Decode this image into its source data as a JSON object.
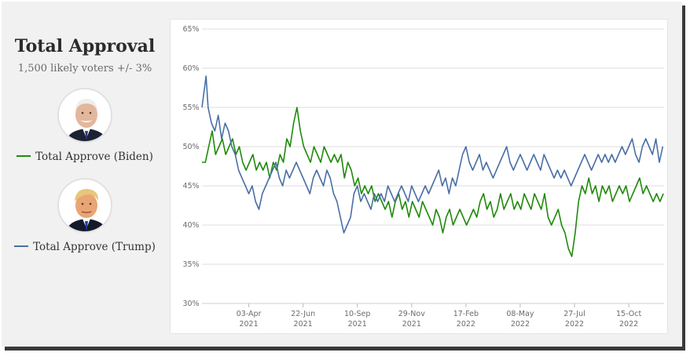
{
  "panel": {
    "title": "Total Approval",
    "subtitle": "1,500 likely voters +/- 3%",
    "legend": [
      {
        "label": "Total Approve (Biden)",
        "color": "#1f8a0a",
        "avatar": "biden-portrait"
      },
      {
        "label": "Total Approve (Trump)",
        "color": "#4a6fa5",
        "avatar": "trump-portrait"
      }
    ]
  },
  "chart_data": {
    "type": "line",
    "title": "",
    "xlabel": "",
    "ylabel": "",
    "ylim": [
      30,
      65
    ],
    "y_ticks": [
      "30%",
      "35%",
      "40%",
      "45%",
      "50%",
      "55%",
      "60%",
      "65%"
    ],
    "x_ticks": [
      {
        "date": "2021-04-03",
        "line1": "03-Apr",
        "line2": "2021"
      },
      {
        "date": "2021-06-22",
        "line1": "22-Jun",
        "line2": "2021"
      },
      {
        "date": "2021-09-10",
        "line1": "10-Sep",
        "line2": "2021"
      },
      {
        "date": "2021-11-29",
        "line1": "29-Nov",
        "line2": "2021"
      },
      {
        "date": "2022-02-17",
        "line1": "17-Feb",
        "line2": "2022"
      },
      {
        "date": "2022-05-08",
        "line1": "08-May",
        "line2": "2022"
      },
      {
        "date": "2022-07-27",
        "line1": "27-Jul",
        "line2": "2022"
      },
      {
        "date": "2022-10-15",
        "line1": "15-Oct",
        "line2": "2022"
      }
    ],
    "xlim": [
      "2021-01-24",
      "2022-12-06"
    ],
    "grid": "horizontal",
    "series": [
      {
        "name": "Total Approve (Biden)",
        "color": "#1f8a0a",
        "points": [
          [
            "2021-01-24",
            48
          ],
          [
            "2021-01-29",
            48
          ],
          [
            "2021-02-03",
            50
          ],
          [
            "2021-02-08",
            52
          ],
          [
            "2021-02-13",
            49
          ],
          [
            "2021-02-18",
            50
          ],
          [
            "2021-02-23",
            51
          ],
          [
            "2021-02-28",
            49
          ],
          [
            "2021-03-05",
            50
          ],
          [
            "2021-03-10",
            51
          ],
          [
            "2021-03-15",
            49
          ],
          [
            "2021-03-20",
            50
          ],
          [
            "2021-03-25",
            48
          ],
          [
            "2021-03-30",
            47
          ],
          [
            "2021-04-04",
            48
          ],
          [
            "2021-04-09",
            49
          ],
          [
            "2021-04-14",
            47
          ],
          [
            "2021-04-19",
            48
          ],
          [
            "2021-04-24",
            47
          ],
          [
            "2021-04-29",
            48
          ],
          [
            "2021-05-04",
            46
          ],
          [
            "2021-05-09",
            48
          ],
          [
            "2021-05-14",
            47
          ],
          [
            "2021-05-19",
            49
          ],
          [
            "2021-05-24",
            48
          ],
          [
            "2021-05-29",
            51
          ],
          [
            "2021-06-03",
            50
          ],
          [
            "2021-06-08",
            53
          ],
          [
            "2021-06-13",
            55
          ],
          [
            "2021-06-18",
            52
          ],
          [
            "2021-06-23",
            50
          ],
          [
            "2021-06-28",
            49
          ],
          [
            "2021-07-03",
            48
          ],
          [
            "2021-07-08",
            50
          ],
          [
            "2021-07-13",
            49
          ],
          [
            "2021-07-18",
            48
          ],
          [
            "2021-07-23",
            50
          ],
          [
            "2021-07-28",
            49
          ],
          [
            "2021-08-02",
            48
          ],
          [
            "2021-08-07",
            49
          ],
          [
            "2021-08-12",
            48
          ],
          [
            "2021-08-17",
            49
          ],
          [
            "2021-08-22",
            46
          ],
          [
            "2021-08-27",
            48
          ],
          [
            "2021-09-01",
            47
          ],
          [
            "2021-09-06",
            45
          ],
          [
            "2021-09-11",
            46
          ],
          [
            "2021-09-16",
            44
          ],
          [
            "2021-09-21",
            45
          ],
          [
            "2021-09-26",
            44
          ],
          [
            "2021-10-01",
            45
          ],
          [
            "2021-10-06",
            43
          ],
          [
            "2021-10-11",
            44
          ],
          [
            "2021-10-16",
            43
          ],
          [
            "2021-10-21",
            42
          ],
          [
            "2021-10-26",
            43
          ],
          [
            "2021-10-31",
            41
          ],
          [
            "2021-11-05",
            43
          ],
          [
            "2021-11-10",
            44
          ],
          [
            "2021-11-15",
            42
          ],
          [
            "2021-11-20",
            43
          ],
          [
            "2021-11-25",
            41
          ],
          [
            "2021-11-30",
            43
          ],
          [
            "2021-12-05",
            42
          ],
          [
            "2021-12-10",
            41
          ],
          [
            "2021-12-15",
            43
          ],
          [
            "2021-12-20",
            42
          ],
          [
            "2021-12-25",
            41
          ],
          [
            "2021-12-30",
            40
          ],
          [
            "2022-01-04",
            42
          ],
          [
            "2022-01-09",
            41
          ],
          [
            "2022-01-14",
            39
          ],
          [
            "2022-01-19",
            41
          ],
          [
            "2022-01-24",
            42
          ],
          [
            "2022-01-29",
            40
          ],
          [
            "2022-02-03",
            41
          ],
          [
            "2022-02-08",
            42
          ],
          [
            "2022-02-13",
            41
          ],
          [
            "2022-02-18",
            40
          ],
          [
            "2022-02-23",
            41
          ],
          [
            "2022-02-28",
            42
          ],
          [
            "2022-03-05",
            41
          ],
          [
            "2022-03-10",
            43
          ],
          [
            "2022-03-15",
            44
          ],
          [
            "2022-03-20",
            42
          ],
          [
            "2022-03-25",
            43
          ],
          [
            "2022-03-30",
            41
          ],
          [
            "2022-04-04",
            42
          ],
          [
            "2022-04-09",
            44
          ],
          [
            "2022-04-14",
            42
          ],
          [
            "2022-04-19",
            43
          ],
          [
            "2022-04-24",
            44
          ],
          [
            "2022-04-29",
            42
          ],
          [
            "2022-05-04",
            43
          ],
          [
            "2022-05-09",
            42
          ],
          [
            "2022-05-14",
            44
          ],
          [
            "2022-05-19",
            43
          ],
          [
            "2022-05-24",
            42
          ],
          [
            "2022-05-29",
            44
          ],
          [
            "2022-06-03",
            43
          ],
          [
            "2022-06-08",
            42
          ],
          [
            "2022-06-13",
            44
          ],
          [
            "2022-06-18",
            41
          ],
          [
            "2022-06-23",
            40
          ],
          [
            "2022-06-28",
            41
          ],
          [
            "2022-07-03",
            42
          ],
          [
            "2022-07-08",
            40
          ],
          [
            "2022-07-13",
            39
          ],
          [
            "2022-07-18",
            37
          ],
          [
            "2022-07-23",
            36
          ],
          [
            "2022-07-28",
            39
          ],
          [
            "2022-08-02",
            43
          ],
          [
            "2022-08-07",
            45
          ],
          [
            "2022-08-12",
            44
          ],
          [
            "2022-08-17",
            46
          ],
          [
            "2022-08-22",
            44
          ],
          [
            "2022-08-27",
            45
          ],
          [
            "2022-09-01",
            43
          ],
          [
            "2022-09-06",
            45
          ],
          [
            "2022-09-11",
            44
          ],
          [
            "2022-09-16",
            45
          ],
          [
            "2022-09-21",
            43
          ],
          [
            "2022-09-26",
            44
          ],
          [
            "2022-10-01",
            45
          ],
          [
            "2022-10-06",
            44
          ],
          [
            "2022-10-11",
            45
          ],
          [
            "2022-10-16",
            43
          ],
          [
            "2022-10-21",
            44
          ],
          [
            "2022-10-26",
            45
          ],
          [
            "2022-10-31",
            46
          ],
          [
            "2022-11-05",
            44
          ],
          [
            "2022-11-10",
            45
          ],
          [
            "2022-11-15",
            44
          ],
          [
            "2022-11-20",
            43
          ],
          [
            "2022-11-25",
            44
          ],
          [
            "2022-11-30",
            43
          ],
          [
            "2022-12-05",
            44
          ]
        ]
      },
      {
        "name": "Total Approve (Trump)",
        "color": "#4a6fa5",
        "points": [
          [
            "2021-01-24",
            55
          ],
          [
            "2021-01-27",
            57
          ],
          [
            "2021-01-30",
            59
          ],
          [
            "2021-02-02",
            55
          ],
          [
            "2021-02-07",
            53
          ],
          [
            "2021-02-12",
            52
          ],
          [
            "2021-02-17",
            54
          ],
          [
            "2021-02-22",
            51
          ],
          [
            "2021-02-27",
            53
          ],
          [
            "2021-03-04",
            52
          ],
          [
            "2021-03-09",
            50
          ],
          [
            "2021-03-14",
            49
          ],
          [
            "2021-03-19",
            47
          ],
          [
            "2021-03-24",
            46
          ],
          [
            "2021-03-29",
            45
          ],
          [
            "2021-04-03",
            44
          ],
          [
            "2021-04-08",
            45
          ],
          [
            "2021-04-13",
            43
          ],
          [
            "2021-04-18",
            42
          ],
          [
            "2021-04-23",
            44
          ],
          [
            "2021-04-28",
            45
          ],
          [
            "2021-05-03",
            46
          ],
          [
            "2021-05-08",
            47
          ],
          [
            "2021-05-13",
            48
          ],
          [
            "2021-05-18",
            46
          ],
          [
            "2021-05-23",
            45
          ],
          [
            "2021-05-28",
            47
          ],
          [
            "2021-06-02",
            46
          ],
          [
            "2021-06-07",
            47
          ],
          [
            "2021-06-12",
            48
          ],
          [
            "2021-06-17",
            47
          ],
          [
            "2021-06-22",
            46
          ],
          [
            "2021-06-27",
            45
          ],
          [
            "2021-07-02",
            44
          ],
          [
            "2021-07-07",
            46
          ],
          [
            "2021-07-12",
            47
          ],
          [
            "2021-07-17",
            46
          ],
          [
            "2021-07-22",
            45
          ],
          [
            "2021-07-27",
            47
          ],
          [
            "2021-08-01",
            46
          ],
          [
            "2021-08-06",
            44
          ],
          [
            "2021-08-11",
            43
          ],
          [
            "2021-08-16",
            41
          ],
          [
            "2021-08-21",
            39
          ],
          [
            "2021-08-26",
            40
          ],
          [
            "2021-08-31",
            41
          ],
          [
            "2021-09-05",
            44
          ],
          [
            "2021-09-10",
            45
          ],
          [
            "2021-09-15",
            43
          ],
          [
            "2021-09-20",
            44
          ],
          [
            "2021-09-25",
            43
          ],
          [
            "2021-09-30",
            42
          ],
          [
            "2021-10-05",
            44
          ],
          [
            "2021-10-10",
            43
          ],
          [
            "2021-10-15",
            44
          ],
          [
            "2021-10-20",
            43
          ],
          [
            "2021-10-25",
            45
          ],
          [
            "2021-10-30",
            44
          ],
          [
            "2021-11-04",
            43
          ],
          [
            "2021-11-09",
            44
          ],
          [
            "2021-11-14",
            45
          ],
          [
            "2021-11-19",
            44
          ],
          [
            "2021-11-24",
            43
          ],
          [
            "2021-11-29",
            45
          ],
          [
            "2021-12-04",
            44
          ],
          [
            "2021-12-09",
            43
          ],
          [
            "2021-12-14",
            44
          ],
          [
            "2021-12-19",
            45
          ],
          [
            "2021-12-24",
            44
          ],
          [
            "2021-12-29",
            45
          ],
          [
            "2022-01-03",
            46
          ],
          [
            "2022-01-08",
            47
          ],
          [
            "2022-01-13",
            45
          ],
          [
            "2022-01-18",
            46
          ],
          [
            "2022-01-23",
            44
          ],
          [
            "2022-01-28",
            46
          ],
          [
            "2022-02-02",
            45
          ],
          [
            "2022-02-07",
            47
          ],
          [
            "2022-02-12",
            49
          ],
          [
            "2022-02-17",
            50
          ],
          [
            "2022-02-22",
            48
          ],
          [
            "2022-02-27",
            47
          ],
          [
            "2022-03-04",
            48
          ],
          [
            "2022-03-09",
            49
          ],
          [
            "2022-03-14",
            47
          ],
          [
            "2022-03-19",
            48
          ],
          [
            "2022-03-24",
            47
          ],
          [
            "2022-03-29",
            46
          ],
          [
            "2022-04-03",
            47
          ],
          [
            "2022-04-08",
            48
          ],
          [
            "2022-04-13",
            49
          ],
          [
            "2022-04-18",
            50
          ],
          [
            "2022-04-23",
            48
          ],
          [
            "2022-04-28",
            47
          ],
          [
            "2022-05-03",
            48
          ],
          [
            "2022-05-08",
            49
          ],
          [
            "2022-05-13",
            48
          ],
          [
            "2022-05-18",
            47
          ],
          [
            "2022-05-23",
            48
          ],
          [
            "2022-05-28",
            49
          ],
          [
            "2022-06-02",
            48
          ],
          [
            "2022-06-07",
            47
          ],
          [
            "2022-06-12",
            49
          ],
          [
            "2022-06-17",
            48
          ],
          [
            "2022-06-22",
            47
          ],
          [
            "2022-06-27",
            46
          ],
          [
            "2022-07-02",
            47
          ],
          [
            "2022-07-07",
            46
          ],
          [
            "2022-07-12",
            47
          ],
          [
            "2022-07-17",
            46
          ],
          [
            "2022-07-22",
            45
          ],
          [
            "2022-07-27",
            46
          ],
          [
            "2022-08-01",
            47
          ],
          [
            "2022-08-06",
            48
          ],
          [
            "2022-08-11",
            49
          ],
          [
            "2022-08-16",
            48
          ],
          [
            "2022-08-21",
            47
          ],
          [
            "2022-08-26",
            48
          ],
          [
            "2022-08-31",
            49
          ],
          [
            "2022-09-05",
            48
          ],
          [
            "2022-09-10",
            49
          ],
          [
            "2022-09-15",
            48
          ],
          [
            "2022-09-20",
            49
          ],
          [
            "2022-09-25",
            48
          ],
          [
            "2022-09-30",
            49
          ],
          [
            "2022-10-05",
            50
          ],
          [
            "2022-10-10",
            49
          ],
          [
            "2022-10-15",
            50
          ],
          [
            "2022-10-20",
            51
          ],
          [
            "2022-10-25",
            49
          ],
          [
            "2022-10-30",
            48
          ],
          [
            "2022-11-04",
            50
          ],
          [
            "2022-11-09",
            51
          ],
          [
            "2022-11-14",
            50
          ],
          [
            "2022-11-19",
            49
          ],
          [
            "2022-11-24",
            51
          ],
          [
            "2022-11-29",
            48
          ],
          [
            "2022-12-04",
            50
          ]
        ]
      }
    ]
  }
}
